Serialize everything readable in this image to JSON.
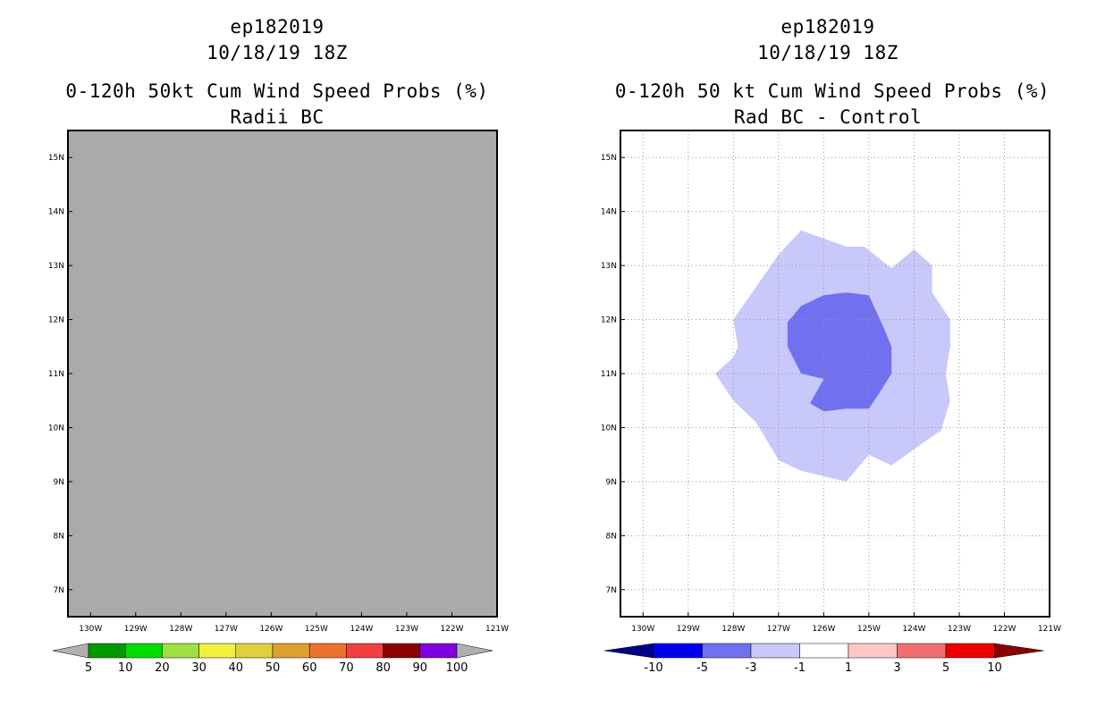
{
  "left_panel": {
    "title": [
      "ep182019",
      "10/18/19 18Z",
      "0-120h 50kt Cum Wind Speed Probs (%)",
      "Radii BC"
    ],
    "field_color": "#aaaaaa"
  },
  "right_panel": {
    "title": [
      "ep182019",
      "10/18/19 18Z",
      "0-120h 50 kt Cum Wind Speed Probs (%)",
      "Rad BC - Control"
    ]
  },
  "chart_data": [
    {
      "type": "heatmap",
      "title": "0-120h 50kt Cum Wind Speed Probs (%) - Radii BC",
      "xlim": [
        -130.5,
        -121
      ],
      "ylim": [
        6.5,
        15.5
      ],
      "x_ticks": [
        "130W",
        "129W",
        "128W",
        "127W",
        "126W",
        "125W",
        "124W",
        "123W",
        "122W",
        "121W"
      ],
      "y_ticks": [
        "7N",
        "8N",
        "9N",
        "10N",
        "11N",
        "12N",
        "13N",
        "14N",
        "15N"
      ],
      "grid": false,
      "colorbar": {
        "labels": [
          "5",
          "10",
          "20",
          "30",
          "40",
          "50",
          "60",
          "70",
          "80",
          "90",
          "100"
        ],
        "colors": [
          "#009900",
          "#00dd00",
          "#a0e040",
          "#f0f040",
          "#e0d040",
          "#e0a030",
          "#f07030",
          "#f04040",
          "#8b0000",
          "#8000e0"
        ],
        "end_color": "#b0b0b0"
      }
    },
    {
      "type": "heatmap",
      "title": "0-120h 50 kt Cum Wind Speed Probs (%) - Rad BC - Control",
      "xlim": [
        -130.5,
        -121
      ],
      "ylim": [
        6.5,
        15.5
      ],
      "x_ticks": [
        "130W",
        "129W",
        "128W",
        "127W",
        "126W",
        "125W",
        "124W",
        "123W",
        "122W",
        "121W"
      ],
      "y_ticks": [
        "7N",
        "8N",
        "9N",
        "10N",
        "11N",
        "12N",
        "13N",
        "14N",
        "15N"
      ],
      "grid": true,
      "contours": [
        {
          "level": "-3 to -1",
          "color": "#c8c8fa",
          "points": [
            [
              -126.5,
              13.65
            ],
            [
              -125.5,
              13.35
            ],
            [
              -125.1,
              13.35
            ],
            [
              -124.5,
              12.95
            ],
            [
              -124.0,
              13.3
            ],
            [
              -123.6,
              13.0
            ],
            [
              -123.6,
              12.5
            ],
            [
              -123.2,
              12.0
            ],
            [
              -123.2,
              11.5
            ],
            [
              -123.3,
              11.0
            ],
            [
              -123.2,
              10.5
            ],
            [
              -123.4,
              9.95
            ],
            [
              -124.0,
              9.6
            ],
            [
              -124.5,
              9.3
            ],
            [
              -125.0,
              9.5
            ],
            [
              -125.5,
              9.0
            ],
            [
              -126.5,
              9.2
            ],
            [
              -127.0,
              9.4
            ],
            [
              -127.5,
              10.1
            ],
            [
              -128.0,
              10.5
            ],
            [
              -128.4,
              11.0
            ],
            [
              -128.0,
              11.3
            ],
            [
              -127.9,
              11.5
            ],
            [
              -128.0,
              12.0
            ],
            [
              -127.5,
              12.6
            ],
            [
              -127.0,
              13.2
            ]
          ]
        },
        {
          "level": "-5 to -3",
          "color": "#7070f0",
          "points": [
            [
              -125.5,
              12.5
            ],
            [
              -125.0,
              12.45
            ],
            [
              -124.7,
              11.9
            ],
            [
              -124.5,
              11.5
            ],
            [
              -124.5,
              11.0
            ],
            [
              -124.8,
              10.6
            ],
            [
              -125.0,
              10.35
            ],
            [
              -125.5,
              10.35
            ],
            [
              -126.0,
              10.3
            ],
            [
              -126.3,
              10.45
            ],
            [
              -126.0,
              10.9
            ],
            [
              -126.5,
              11.0
            ],
            [
              -126.8,
              11.5
            ],
            [
              -126.8,
              11.95
            ],
            [
              -126.5,
              12.25
            ],
            [
              -126.0,
              12.45
            ]
          ]
        }
      ],
      "colorbar": {
        "labels": [
          "-10",
          "-5",
          "-3",
          "-1",
          "1",
          "3",
          "5",
          "10"
        ],
        "colors": [
          "#0000ee",
          "#7070f0",
          "#c8c8fa",
          "#ffffff",
          "#ffc8c8",
          "#f07070",
          "#ee0000"
        ],
        "left_end_color": "#00008b",
        "right_end_color": "#8b0000"
      }
    }
  ]
}
